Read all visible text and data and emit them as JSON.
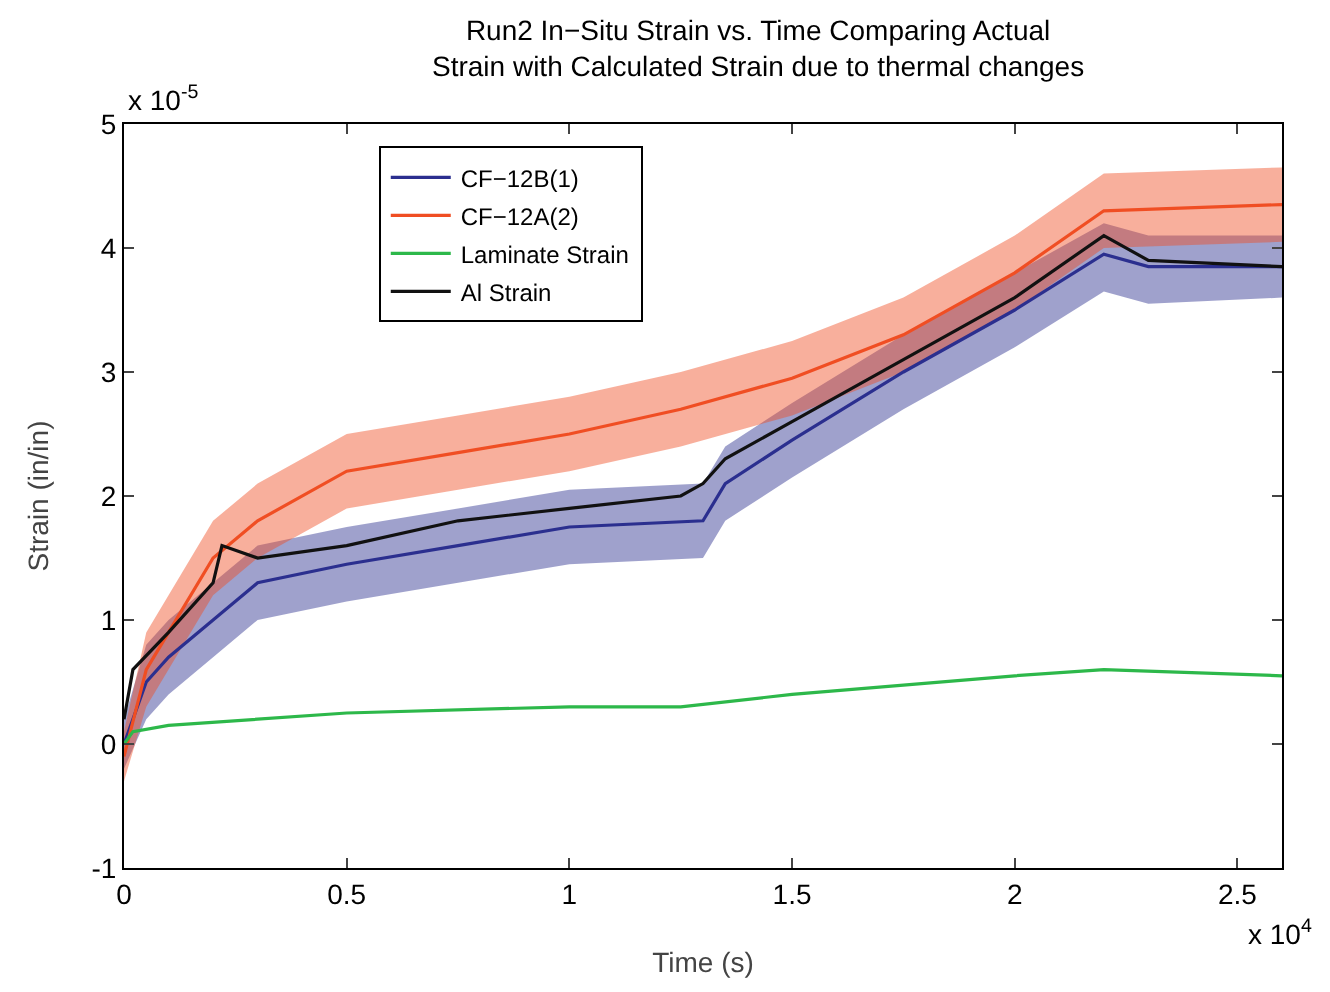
{
  "chart_data": {
    "type": "line",
    "title": "Run2 In−Situ Strain vs. Time Comparing Actual\nStrain with Calculated Strain due to thermal changes",
    "xlabel": "Time (s)",
    "ylabel": "Strain (in/in)",
    "annotations": [
      "x 10$^{-5}$",
      "x 10$^{4}$"
    ],
    "xlim": [
      0,
      2.6
    ],
    "xticks": [
      0,
      0.5,
      1,
      1.5,
      2,
      2.5
    ],
    "ylim": [
      -1,
      5
    ],
    "yticks": [
      -1,
      0,
      1,
      2,
      3,
      4,
      5
    ],
    "grid": false,
    "legend": "top left",
    "marker": "none",
    "line_style": "solid",
    "series": [
      {
        "name": "CF−12B(1)",
        "color": "#2b2f8f",
        "x": [
          0,
          0.05,
          0.1,
          0.2,
          0.3,
          0.5,
          0.75,
          1,
          1.3,
          1.35,
          1.5,
          1.75,
          2,
          2.2,
          2.3,
          2.6
        ],
        "values": [
          0,
          0.5,
          0.7,
          1,
          1.3,
          1.45,
          1.6,
          1.75,
          1.8,
          2.1,
          2.45,
          3,
          3.5,
          3.95,
          3.85,
          3.85
        ],
        "lower": [
          -0.2,
          0.2,
          0.4,
          0.7,
          1,
          1.15,
          1.3,
          1.45,
          1.5,
          1.8,
          2.15,
          2.7,
          3.2,
          3.65,
          3.55,
          3.6
        ],
        "upper": [
          0.2,
          0.8,
          1,
          1.3,
          1.6,
          1.75,
          1.9,
          2.05,
          2.1,
          2.4,
          2.75,
          3.3,
          3.8,
          4.2,
          4.1,
          4.1
        ]
      },
      {
        "name": "CF−12A(2)",
        "color": "#f04e23",
        "x": [
          0,
          0.05,
          0.1,
          0.2,
          0.3,
          0.5,
          0.75,
          1,
          1.25,
          1.5,
          1.75,
          2,
          2.2,
          2.6
        ],
        "values": [
          -0.1,
          0.6,
          0.9,
          1.5,
          1.8,
          2.2,
          2.35,
          2.5,
          2.7,
          2.95,
          3.3,
          3.8,
          4.3,
          4.35
        ],
        "lower": [
          -0.3,
          0.3,
          0.6,
          1.2,
          1.5,
          1.9,
          2.05,
          2.2,
          2.4,
          2.65,
          3,
          3.5,
          4,
          4.05
        ],
        "upper": [
          0.1,
          0.9,
          1.2,
          1.8,
          2.1,
          2.5,
          2.65,
          2.8,
          3,
          3.25,
          3.6,
          4.1,
          4.6,
          4.65
        ]
      },
      {
        "name": "Laminate Strain",
        "color": "#2db84a",
        "x": [
          0,
          0.02,
          0.1,
          0.5,
          1,
          1.25,
          1.5,
          2,
          2.2,
          2.6
        ],
        "values": [
          0,
          0.1,
          0.15,
          0.25,
          0.3,
          0.3,
          0.4,
          0.55,
          0.6,
          0.55
        ]
      },
      {
        "name": "Al Strain",
        "color": "#111111",
        "x": [
          0,
          0.02,
          0.1,
          0.2,
          0.22,
          0.3,
          0.5,
          0.75,
          1,
          1.25,
          1.3,
          1.35,
          1.5,
          1.75,
          2,
          2.2,
          2.3,
          2.6
        ],
        "values": [
          0.2,
          0.6,
          0.9,
          1.3,
          1.6,
          1.5,
          1.6,
          1.8,
          1.9,
          2,
          2.1,
          2.3,
          2.6,
          3.1,
          3.6,
          4.1,
          3.9,
          3.85
        ]
      }
    ]
  }
}
